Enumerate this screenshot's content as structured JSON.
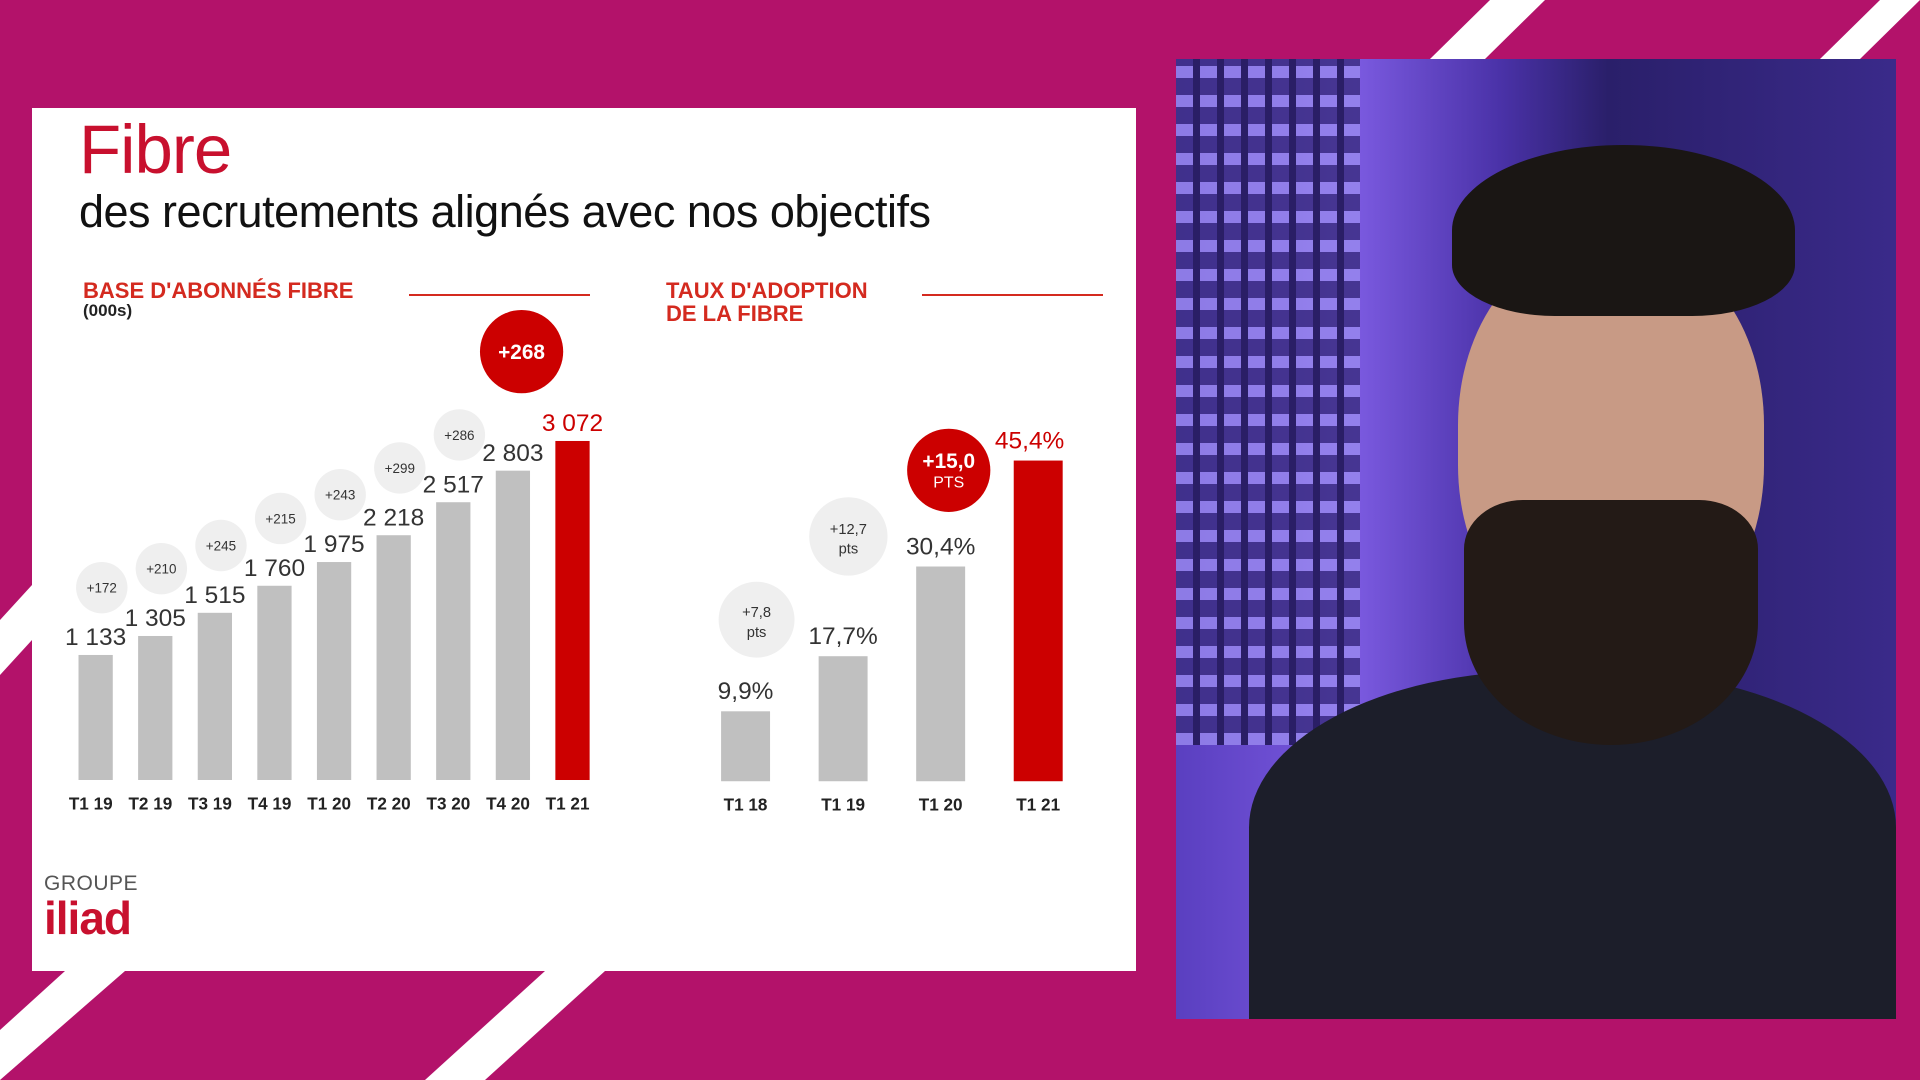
{
  "slide": {
    "title": "Fibre",
    "subtitle": "des recrutements alignés avec nos objectifs",
    "logo": {
      "line1": "GROUPE",
      "line2": "iliad"
    },
    "colors": {
      "accent": "#c8102e",
      "bar": "#c0c0c0",
      "highlight": "#cc0000",
      "background": "#b3126a"
    }
  },
  "chart_data": [
    {
      "type": "bar",
      "title": "BASE D'ABONNÉS FIBRE",
      "unit": "(000s)",
      "categories": [
        "T1 19",
        "T2 19",
        "T3 19",
        "T4 19",
        "T1 20",
        "T2 20",
        "T3 20",
        "T4 20",
        "T1 21"
      ],
      "values": [
        1133,
        1305,
        1515,
        1760,
        1975,
        2218,
        2517,
        2803,
        3072
      ],
      "value_labels": [
        "1 133",
        "1 305",
        "1 515",
        "1 760",
        "1 975",
        "2 218",
        "2 517",
        "2 803",
        "3 072"
      ],
      "increments": [
        "+172",
        "+210",
        "+245",
        "+215",
        "+243",
        "+299",
        "+286",
        "+268"
      ],
      "highlight_index": 8
    },
    {
      "type": "bar",
      "title_lines": [
        "TAUX D'ADOPTION",
        "DE LA FIBRE"
      ],
      "categories": [
        "T1 18",
        "T1 19",
        "T1 20",
        "T1 21"
      ],
      "values": [
        9.9,
        17.7,
        30.4,
        45.4
      ],
      "value_labels": [
        "9,9%",
        "17,7%",
        "30,4%",
        "45,4%"
      ],
      "increments": [
        [
          "+7,8",
          "pts"
        ],
        [
          "+12,7",
          "pts"
        ],
        [
          "+15,0",
          "PTS"
        ]
      ],
      "highlight_index": 3
    }
  ]
}
